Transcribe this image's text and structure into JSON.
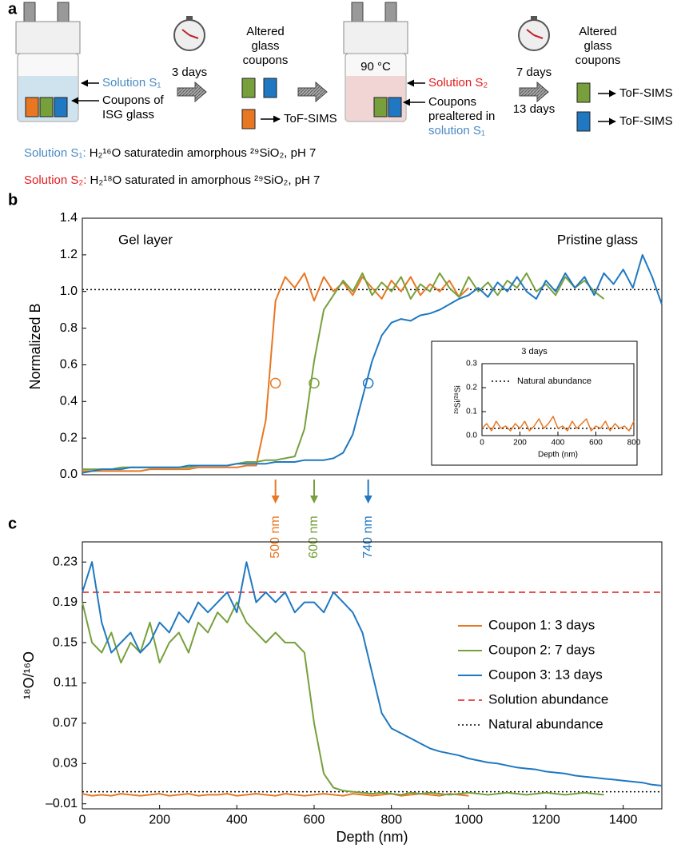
{
  "panel_a": {
    "label": "a",
    "step1_solution": "Solution S₁",
    "step1_coupons": [
      "Coupons of",
      "ISG glass"
    ],
    "step1_time": "3 days",
    "altered_1": [
      "Altered",
      "glass",
      "coupons"
    ],
    "tof_1": "ToF-SIMS",
    "temperature": "90 °C",
    "step2_solution": "Solution S₂",
    "step2_coupons": [
      "Coupons",
      "prealtered in",
      "solution S₁"
    ],
    "step2_times": [
      "7 days",
      "13 days"
    ],
    "altered_2": [
      "Altered",
      "glass",
      "coupons"
    ],
    "tof_2": "ToF-SIMS",
    "tof_3": "ToF-SIMS",
    "legend_s1": [
      "Solution S₁:",
      " H₂¹⁶O saturatedin amorphous ²⁹SiO₂, pH 7"
    ],
    "legend_s2": [
      "Solution S₂:",
      " H₂¹⁸O saturated in amorphous ²⁹SiO₂, pH 7"
    ]
  },
  "chart_data": [
    {
      "type": "line",
      "label": "b",
      "ylabel": "Normalized B",
      "annotations": [
        "Gel layer",
        "Pristine glass"
      ],
      "xlim": [
        0,
        1500
      ],
      "ylim": [
        0,
        1.4
      ],
      "yticks": [
        {
          "value": 0,
          "label": "0.0"
        },
        0.2,
        0.4,
        0.6,
        0.8,
        {
          "value": 1,
          "label": "1.0"
        },
        1.2,
        1.4
      ],
      "x": [
        0,
        25,
        50,
        75,
        100,
        125,
        150,
        175,
        200,
        225,
        250,
        275,
        300,
        325,
        350,
        375,
        400,
        425,
        450,
        475,
        500,
        525,
        550,
        575,
        600,
        625,
        650,
        675,
        700,
        725,
        750,
        775,
        800,
        825,
        850,
        875,
        900,
        925,
        950,
        975,
        1000,
        1025,
        1050,
        1075,
        1100,
        1125,
        1150,
        1175,
        1200,
        1225,
        1250,
        1275,
        1300,
        1325,
        1350,
        1375,
        1400,
        1425,
        1450,
        1475,
        1500
      ],
      "series": [
        {
          "color": "#e87722",
          "values": [
            0.02,
            0.02,
            0.02,
            0.02,
            0.02,
            0.02,
            0.02,
            0.03,
            0.03,
            0.03,
            0.03,
            0.03,
            0.04,
            0.04,
            0.04,
            0.04,
            0.04,
            0.05,
            0.05,
            0.3,
            0.95,
            1.08,
            1.02,
            1.1,
            0.95,
            1.08,
            1.0,
            1.05,
            0.98,
            1.08,
            1.02,
            0.96,
            1.06,
            1.0,
            1.08,
            0.98,
            1.04,
            1.0,
            1.06,
            0.97,
            1.02,
            null,
            null,
            null,
            null,
            null,
            null,
            null,
            null,
            null,
            null,
            null,
            null,
            null,
            null,
            null,
            null,
            null,
            null,
            null,
            null
          ]
        },
        {
          "color": "#77a03c",
          "values": [
            0.03,
            0.03,
            0.03,
            0.03,
            0.04,
            0.04,
            0.04,
            0.04,
            0.04,
            0.04,
            0.04,
            0.04,
            0.05,
            0.05,
            0.05,
            0.05,
            0.06,
            0.07,
            0.07,
            0.08,
            0.08,
            0.09,
            0.1,
            0.25,
            0.62,
            0.9,
            0.98,
            1.06,
            1.0,
            1.1,
            0.98,
            1.05,
            1.0,
            1.08,
            0.96,
            1.04,
            1.0,
            1.1,
            1.02,
            0.97,
            1.08,
            1.0,
            1.05,
            0.98,
            1.06,
            1.02,
            1.1,
            1.0,
            1.04,
            0.98,
            1.08,
            1.02,
            1.06,
            1.0,
            0.96,
            null,
            null,
            null,
            null,
            null,
            null
          ]
        },
        {
          "color": "#1f78c1",
          "values": [
            0.01,
            0.02,
            0.03,
            0.03,
            0.03,
            0.04,
            0.04,
            0.04,
            0.04,
            0.04,
            0.04,
            0.05,
            0.05,
            0.05,
            0.05,
            0.05,
            0.06,
            0.06,
            0.06,
            0.06,
            0.07,
            0.07,
            0.07,
            0.08,
            0.08,
            0.08,
            0.09,
            0.12,
            0.22,
            0.42,
            0.62,
            0.76,
            0.83,
            0.85,
            0.84,
            0.87,
            0.88,
            0.9,
            0.93,
            0.96,
            0.98,
            1.02,
            0.97,
            1.05,
            1.0,
            1.08,
            1.0,
            0.96,
            1.06,
            1.0,
            1.1,
            1.02,
            1.08,
            0.98,
            1.1,
            1.04,
            1.12,
            1.02,
            1.2,
            1.08,
            0.93
          ]
        }
      ],
      "hlines": [
        {
          "value": 1.01,
          "color": "#000000",
          "style": "dotted"
        }
      ],
      "markers": {
        "x": [
          500,
          600,
          740
        ],
        "y": [
          0.5,
          0.5,
          0.5
        ],
        "colors": [
          "#e87722",
          "#77a03c",
          "#1f78c1"
        ]
      },
      "depth_labels": [
        "500 nm",
        "600 nm",
        "740 nm"
      ]
    },
    {
      "type": "line",
      "title": "3 days",
      "xlabel": "Depth (nm)",
      "ylabel": "²⁹Si/²⁸Si",
      "legend": "upper left",
      "xlim": [
        0,
        800
      ],
      "xticks": [
        0,
        200,
        400,
        600,
        800
      ],
      "ylim": [
        0,
        0.3
      ],
      "yticks": [
        {
          "value": 0,
          "label": "0.0"
        },
        0.1,
        0.2,
        0.3
      ],
      "x": [
        0,
        25,
        50,
        75,
        100,
        125,
        150,
        175,
        200,
        225,
        250,
        275,
        300,
        325,
        350,
        375,
        400,
        425,
        450,
        475,
        500,
        525,
        550,
        575,
        600,
        625,
        650,
        675,
        700,
        725,
        750,
        775,
        800
      ],
      "series": [
        {
          "color": "#e87722",
          "values": [
            0.03,
            0.05,
            0.02,
            0.06,
            0.03,
            0.04,
            0.02,
            0.05,
            0.03,
            0.06,
            0.02,
            0.04,
            0.07,
            0.03,
            0.05,
            0.08,
            0.03,
            0.04,
            0.02,
            0.06,
            0.03,
            0.05,
            0.07,
            0.02,
            0.04,
            0.03,
            0.06,
            0.02,
            0.05,
            0.03,
            0.04,
            0.02,
            0.06
          ]
        }
      ],
      "hlines": [
        {
          "name": "Natural abundance",
          "value": 0.03,
          "color": "#000000",
          "style": "dotted"
        }
      ]
    },
    {
      "type": "line",
      "label": "c",
      "xlabel": "Depth (nm)",
      "ylabel": "¹⁸O/¹⁶O",
      "legend": "right",
      "xlim": [
        0,
        1500
      ],
      "xticks": [
        0,
        200,
        400,
        600,
        800,
        1000,
        1200,
        1400
      ],
      "ylim": [
        -0.015,
        0.25
      ],
      "yticks": [
        {
          "value": -0.01,
          "label": "–0.01"
        },
        0.03,
        0.07,
        0.11,
        0.15,
        0.19,
        0.23
      ],
      "x": [
        0,
        25,
        50,
        75,
        100,
        125,
        150,
        175,
        200,
        225,
        250,
        275,
        300,
        325,
        350,
        375,
        400,
        425,
        450,
        475,
        500,
        525,
        550,
        575,
        600,
        625,
        650,
        675,
        700,
        725,
        750,
        775,
        800,
        825,
        850,
        875,
        900,
        925,
        950,
        975,
        1000,
        1025,
        1050,
        1075,
        1100,
        1125,
        1150,
        1175,
        1200,
        1225,
        1250,
        1275,
        1300,
        1325,
        1350,
        1375,
        1400,
        1425,
        1450,
        1475,
        1500
      ],
      "series": [
        {
          "name": "Coupon 1: 3 days",
          "color": "#e87722",
          "values": [
            0,
            -0.002,
            -0.001,
            -0.002,
            0,
            -0.001,
            -0.002,
            -0.001,
            0,
            -0.002,
            -0.001,
            0,
            -0.002,
            -0.001,
            -0.001,
            0,
            -0.002,
            -0.001,
            0,
            -0.001,
            -0.002,
            0,
            -0.001,
            -0.002,
            -0.001,
            0,
            -0.001,
            -0.002,
            0,
            -0.001,
            -0.002,
            -0.001,
            0,
            -0.002,
            -0.001,
            0,
            -0.001,
            -0.002,
            0,
            -0.001,
            -0.002,
            null,
            null,
            null,
            null,
            null,
            null,
            null,
            null,
            null,
            null,
            null,
            null,
            null,
            null,
            null,
            null,
            null,
            null,
            null,
            null
          ]
        },
        {
          "name": "Coupon 2: 7 days",
          "color": "#77a03c",
          "values": [
            0.19,
            0.15,
            0.14,
            0.16,
            0.13,
            0.15,
            0.14,
            0.17,
            0.13,
            0.15,
            0.16,
            0.14,
            0.17,
            0.16,
            0.18,
            0.17,
            0.19,
            0.17,
            0.16,
            0.15,
            0.16,
            0.15,
            0.15,
            0.14,
            0.07,
            0.02,
            0.006,
            0.003,
            0.002,
            0.001,
            0,
            0.001,
            0,
            -0.001,
            0.001,
            0,
            0.001,
            0,
            -0.001,
            0,
            0.001,
            0,
            -0.001,
            0,
            0.001,
            0,
            -0.001,
            0,
            0.001,
            0,
            -0.001,
            0,
            0.001,
            0,
            -0.001,
            null,
            null,
            null,
            null,
            null,
            null
          ]
        },
        {
          "name": "Coupon 3: 13 days",
          "color": "#1f78c1",
          "values": [
            0.2,
            0.23,
            0.17,
            0.14,
            0.15,
            0.16,
            0.14,
            0.15,
            0.17,
            0.16,
            0.18,
            0.17,
            0.19,
            0.18,
            0.19,
            0.2,
            0.18,
            0.23,
            0.19,
            0.2,
            0.19,
            0.2,
            0.18,
            0.19,
            0.19,
            0.18,
            0.2,
            0.19,
            0.18,
            0.16,
            0.12,
            0.08,
            0.065,
            0.06,
            0.055,
            0.05,
            0.045,
            0.042,
            0.04,
            0.038,
            0.035,
            0.033,
            0.031,
            0.03,
            0.028,
            0.026,
            0.025,
            0.024,
            0.022,
            0.021,
            0.02,
            0.018,
            0.017,
            0.016,
            0.015,
            0.014,
            0.013,
            0.012,
            0.011,
            0.009,
            0.008
          ]
        }
      ],
      "hlines": [
        {
          "name": "Solution abundance",
          "value": 0.2,
          "color": "#e31a1c",
          "style": "dashed"
        },
        {
          "name": "Natural abundance",
          "value": 0.002,
          "color": "#000000",
          "style": "dotted"
        }
      ]
    }
  ]
}
